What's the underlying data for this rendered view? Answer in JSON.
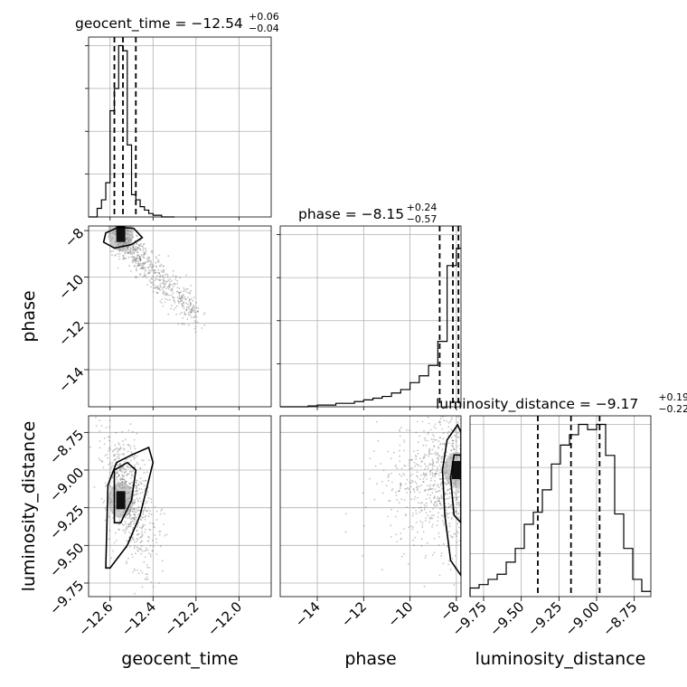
{
  "chart_data": {
    "type": "corner",
    "parameters": [
      "geocent_time",
      "phase",
      "luminosity_distance"
    ],
    "titles": [
      {
        "param": "geocent_time",
        "lhs": "geocent_time = −12.54",
        "plus": "+0.06",
        "minus": "−0.04",
        "median": -12.54,
        "upper_err": 0.06,
        "lower_err": 0.04
      },
      {
        "param": "phase",
        "lhs": "phase = −8.15",
        "plus": "+0.24",
        "minus": "−0.57",
        "median": -8.15,
        "upper_err": 0.24,
        "lower_err": 0.57
      },
      {
        "param": "luminosity_distance",
        "lhs": "luminosity_distance = −9.17",
        "plus": "+0.19",
        "minus": "−0.22",
        "median": -9.17,
        "upper_err": 0.19,
        "lower_err": 0.22
      }
    ],
    "ranges": {
      "geocent_time": [
        -12.7,
        -11.85
      ],
      "phase": [
        -15.6,
        -7.8
      ],
      "luminosity_distance": [
        -9.84,
        -8.64
      ]
    },
    "ticks": {
      "geocent_time": {
        "values": [
          -12.6,
          -12.4,
          -12.2,
          -12.0
        ],
        "labels": [
          "−12.6",
          "−12.4",
          "−12.2",
          "−12.0"
        ]
      },
      "phase": {
        "values": [
          -14,
          -12,
          -10,
          -8
        ],
        "labels": [
          "−14",
          "−12",
          "−10",
          "−8"
        ]
      },
      "luminosity_distance": {
        "values": [
          -9.75,
          -9.5,
          -9.25,
          -9.0,
          -8.75
        ],
        "labels": [
          "−9.75",
          "−9.50",
          "−9.25",
          "−9.00",
          "−8.75"
        ]
      }
    },
    "quantiles": {
      "geocent_time": [
        -12.58,
        -12.54,
        -12.48
      ],
      "phase": [
        -8.72,
        -8.15,
        -7.91
      ],
      "luminosity_distance": [
        -9.39,
        -9.17,
        -8.98
      ]
    },
    "histograms": {
      "geocent_time": {
        "edges": [
          -12.7,
          -12.68,
          -12.66,
          -12.64,
          -12.62,
          -12.6,
          -12.58,
          -12.56,
          -12.54,
          -12.52,
          -12.5,
          -12.48,
          -12.46,
          -12.44,
          -12.42,
          -12.4,
          -12.38,
          -12.36,
          -12.34,
          -12.32,
          -12.3
        ],
        "counts": [
          0.0,
          0.0,
          0.05,
          0.1,
          0.2,
          0.62,
          0.75,
          1.0,
          0.97,
          0.42,
          0.13,
          0.1,
          0.06,
          0.04,
          0.02,
          0.01,
          0.01,
          0.0,
          0.0,
          0.0
        ]
      },
      "phase": {
        "edges": [
          -15.6,
          -15.2,
          -14.8,
          -14.4,
          -14.0,
          -13.6,
          -13.2,
          -12.8,
          -12.4,
          -12.0,
          -11.6,
          -11.2,
          -10.8,
          -10.4,
          -10.0,
          -9.6,
          -9.2,
          -8.8,
          -8.4,
          -8.0,
          -7.8
        ],
        "counts": [
          0.0,
          0.0,
          0.0,
          0.005,
          0.01,
          0.01,
          0.02,
          0.02,
          0.03,
          0.04,
          0.05,
          0.06,
          0.08,
          0.1,
          0.14,
          0.18,
          0.24,
          0.38,
          0.82,
          0.92
        ]
      },
      "luminosity_distance": {
        "edges": [
          -9.84,
          -9.78,
          -9.72,
          -9.66,
          -9.6,
          -9.54,
          -9.48,
          -9.42,
          -9.36,
          -9.3,
          -9.24,
          -9.18,
          -9.12,
          -9.06,
          -9.0,
          -8.94,
          -8.88,
          -8.82,
          -8.76,
          -8.7,
          -8.64
        ],
        "counts": [
          0.05,
          0.07,
          0.1,
          0.13,
          0.2,
          0.28,
          0.42,
          0.49,
          0.62,
          0.77,
          0.88,
          0.94,
          1.0,
          0.97,
          1.0,
          0.82,
          0.48,
          0.28,
          0.1,
          0.03
        ]
      }
    },
    "pairs": [
      {
        "x": "geocent_time",
        "y": "phase",
        "core": [
          -12.55,
          -8.1
        ],
        "contours": [
          [
            [
              -12.62,
              -8.1
            ],
            [
              -12.56,
              -7.85
            ],
            [
              -12.49,
              -7.9
            ],
            [
              -12.45,
              -8.3
            ],
            [
              -12.5,
              -8.6
            ],
            [
              -12.58,
              -8.75
            ],
            [
              -12.63,
              -8.5
            ]
          ]
        ]
      },
      {
        "x": "geocent_time",
        "y": "luminosity_distance",
        "core": [
          -12.55,
          -9.2
        ],
        "contours": [
          [
            [
              -12.62,
              -9.65
            ],
            [
              -12.61,
              -9.1
            ],
            [
              -12.57,
              -8.95
            ],
            [
              -12.5,
              -8.9
            ],
            [
              -12.42,
              -8.85
            ],
            [
              -12.4,
              -8.95
            ],
            [
              -12.46,
              -9.3
            ],
            [
              -12.52,
              -9.5
            ],
            [
              -12.6,
              -9.65
            ]
          ],
          [
            [
              -12.58,
              -9.35
            ],
            [
              -12.58,
              -9.0
            ],
            [
              -12.52,
              -8.95
            ],
            [
              -12.48,
              -9.0
            ],
            [
              -12.5,
              -9.2
            ],
            [
              -12.55,
              -9.35
            ]
          ]
        ]
      },
      {
        "x": "phase",
        "y": "luminosity_distance",
        "core": [
          -8.0,
          -9.0
        ],
        "contours": [
          [
            [
              -7.8,
              -9.7
            ],
            [
              -8.25,
              -9.6
            ],
            [
              -8.5,
              -9.3
            ],
            [
              -8.6,
              -9.0
            ],
            [
              -8.4,
              -8.8
            ],
            [
              -7.95,
              -8.7
            ],
            [
              -7.8,
              -8.75
            ]
          ],
          [
            [
              -7.8,
              -9.35
            ],
            [
              -8.1,
              -9.3
            ],
            [
              -8.25,
              -9.05
            ],
            [
              -8.1,
              -8.9
            ],
            [
              -7.8,
              -8.9
            ]
          ]
        ]
      }
    ]
  }
}
